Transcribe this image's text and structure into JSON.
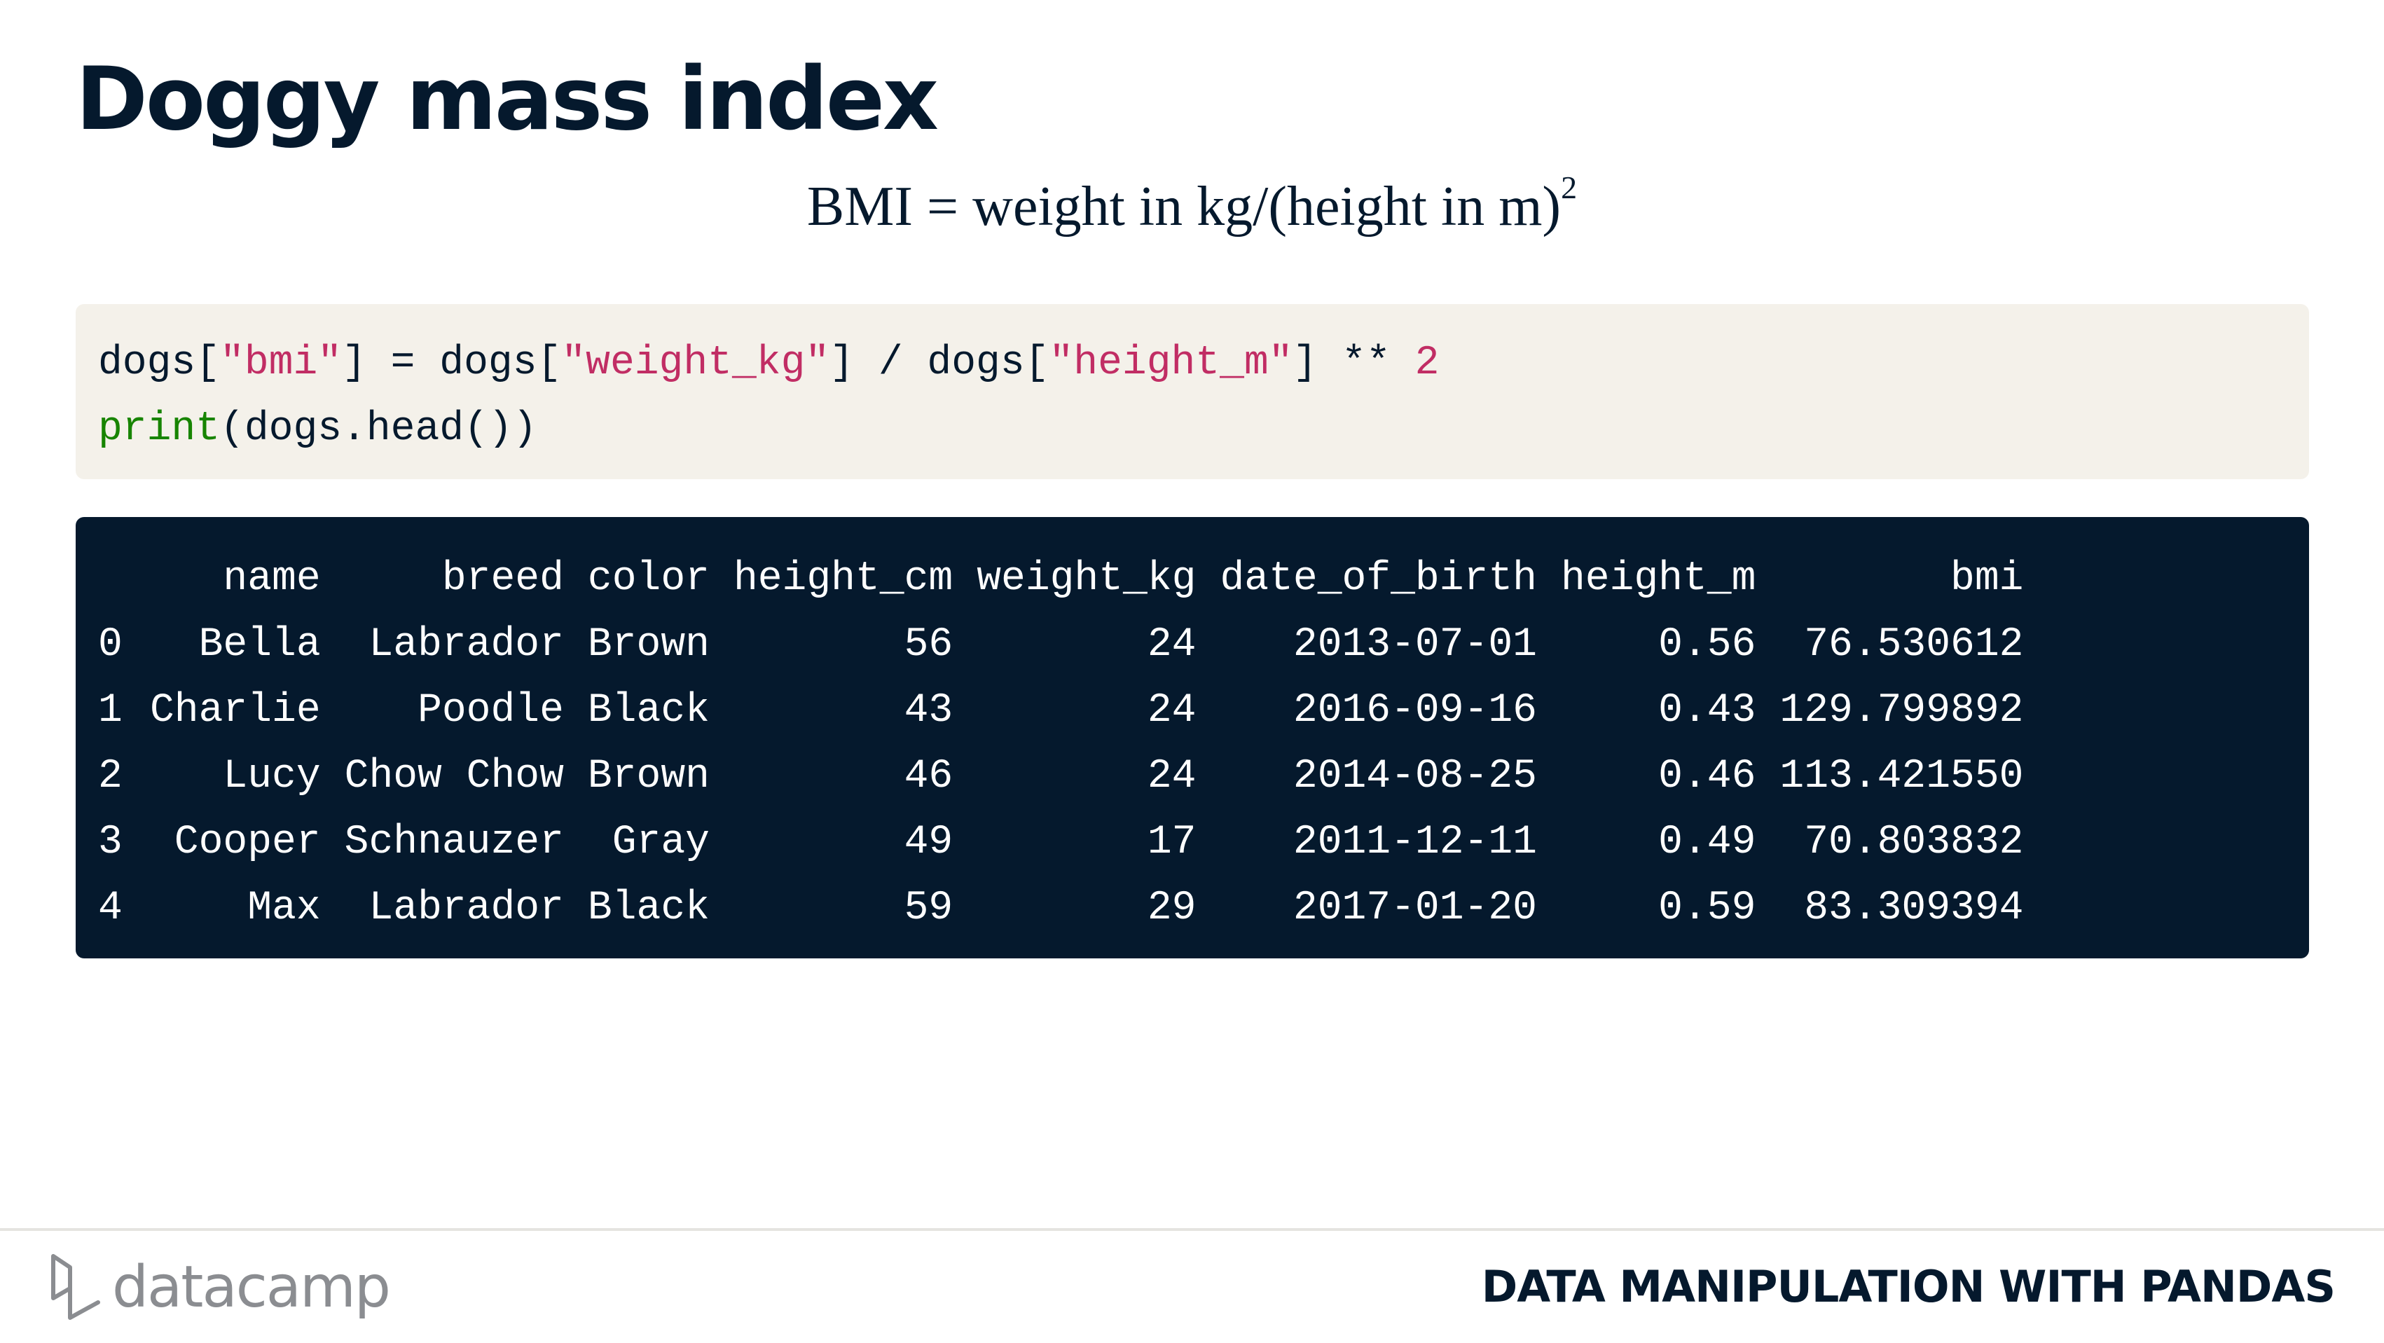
{
  "slide": {
    "title": "Doggy mass index",
    "formula": {
      "text": "BMI = weight in kg/(height in m)",
      "exponent": "2"
    }
  },
  "code": {
    "line1": [
      {
        "text": "dogs[",
        "type": "plain"
      },
      {
        "text": "\"bmi\"",
        "type": "string"
      },
      {
        "text": "] = dogs[",
        "type": "plain"
      },
      {
        "text": "\"weight_kg\"",
        "type": "string"
      },
      {
        "text": "] / dogs[",
        "type": "plain"
      },
      {
        "text": "\"height_m\"",
        "type": "string"
      },
      {
        "text": "] ** ",
        "type": "plain"
      },
      {
        "text": "2",
        "type": "number"
      }
    ],
    "line2": [
      {
        "text": "print",
        "type": "keyword"
      },
      {
        "text": "(dogs.head())",
        "type": "plain"
      }
    ]
  },
  "output": {
    "columns": [
      "",
      "name",
      "breed",
      "color",
      "height_cm",
      "weight_kg",
      "date_of_birth",
      "height_m",
      "bmi"
    ],
    "rows": [
      [
        "0",
        "Bella",
        "Labrador",
        "Brown",
        "56",
        "24",
        "2013-07-01",
        "0.56",
        "76.530612"
      ],
      [
        "1",
        "Charlie",
        "Poodle",
        "Black",
        "43",
        "24",
        "2016-09-16",
        "0.43",
        "129.799892"
      ],
      [
        "2",
        "Lucy",
        "Chow Chow",
        "Brown",
        "46",
        "24",
        "2014-08-25",
        "0.46",
        "113.421550"
      ],
      [
        "3",
        "Cooper",
        "Schnauzer",
        "Gray",
        "49",
        "17",
        "2011-12-11",
        "0.49",
        "70.803832"
      ],
      [
        "4",
        "Max",
        "Labrador",
        "Black",
        "59",
        "29",
        "2017-01-20",
        "0.59",
        "83.309394"
      ]
    ]
  },
  "footer": {
    "logo_text": "datacamp",
    "logo_icon": "datacamp-logo-icon",
    "course_title": "DATA MANIPULATION WITH PANDAS"
  },
  "colors": {
    "navy": "#05192d",
    "code_bg": "#f4f1ea",
    "string": "#c12d64",
    "keyword": "#178400",
    "logo_gray": "#8b8d91"
  }
}
